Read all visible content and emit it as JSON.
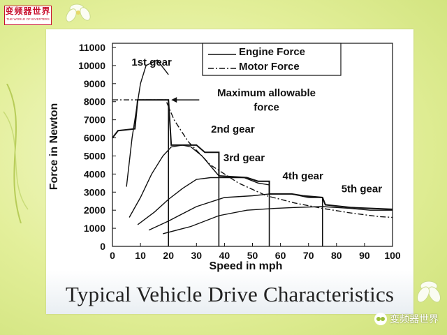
{
  "logo": {
    "name": "变频器世界",
    "subtitle": "THE WORLD OF INVERTERS"
  },
  "caption": "Typical Vehicle Drive Characteristics",
  "watermark": "变频器世界",
  "chart_data": {
    "type": "line",
    "xlabel": "Speed in mph",
    "ylabel": "Force in Newton",
    "xlim": [
      0,
      100
    ],
    "ylim": [
      0,
      11000
    ],
    "xticks": [
      0,
      10,
      20,
      30,
      40,
      50,
      60,
      70,
      80,
      90,
      100
    ],
    "yticks": [
      0,
      1000,
      2000,
      3000,
      4000,
      5000,
      6000,
      7000,
      8000,
      9000,
      10000,
      11000
    ],
    "legend": [
      {
        "name": "Engine Force",
        "style": "solid"
      },
      {
        "name": "Motor Force",
        "style": "dash-dot"
      }
    ],
    "legend_position": "top-right",
    "series": [
      {
        "name": "1st gear",
        "style": "solid",
        "points": [
          [
            5,
            3300
          ],
          [
            7,
            6000
          ],
          [
            10,
            9000
          ],
          [
            12,
            10000
          ],
          [
            16,
            10300
          ],
          [
            20,
            9500
          ]
        ]
      },
      {
        "name": "2nd gear",
        "style": "solid",
        "points": [
          [
            6,
            1600
          ],
          [
            10,
            2700
          ],
          [
            14,
            4000
          ],
          [
            18,
            5000
          ],
          [
            21,
            5500
          ],
          [
            25,
            5600
          ],
          [
            28,
            5500
          ],
          [
            32,
            5000
          ],
          [
            38,
            3900
          ]
        ]
      },
      {
        "name": "3rd gear",
        "style": "solid",
        "points": [
          [
            9,
            1200
          ],
          [
            15,
            1900
          ],
          [
            20,
            2600
          ],
          [
            25,
            3200
          ],
          [
            30,
            3700
          ],
          [
            35,
            3800
          ],
          [
            38,
            3800
          ],
          [
            47,
            3800
          ],
          [
            52,
            3500
          ],
          [
            56,
            3400
          ]
        ]
      },
      {
        "name": "4th gear",
        "style": "solid",
        "points": [
          [
            13,
            900
          ],
          [
            20,
            1400
          ],
          [
            30,
            2200
          ],
          [
            40,
            2700
          ],
          [
            50,
            2800
          ],
          [
            56,
            2900
          ],
          [
            64,
            2900
          ],
          [
            70,
            2700
          ],
          [
            75,
            2700
          ]
        ]
      },
      {
        "name": "5th gear",
        "style": "solid",
        "points": [
          [
            18,
            700
          ],
          [
            28,
            1100
          ],
          [
            38,
            1700
          ],
          [
            48,
            2000
          ],
          [
            58,
            2100
          ],
          [
            65,
            2150
          ],
          [
            75,
            2200
          ],
          [
            85,
            2100
          ],
          [
            92,
            2000
          ],
          [
            100,
            2000
          ]
        ]
      },
      {
        "name": "Motor Force",
        "style": "dash-dot",
        "points": [
          [
            0,
            8100
          ],
          [
            19,
            8100
          ],
          [
            22,
            7000
          ],
          [
            27,
            5800
          ],
          [
            35,
            4500
          ],
          [
            45,
            3500
          ],
          [
            55,
            2800
          ],
          [
            65,
            2400
          ],
          [
            75,
            2100
          ],
          [
            85,
            1850
          ],
          [
            95,
            1650
          ],
          [
            100,
            1600
          ]
        ]
      }
    ],
    "engine_envelope": {
      "points": [
        [
          0,
          6000
        ],
        [
          2,
          6400
        ],
        [
          8,
          6500
        ],
        [
          9,
          8100
        ],
        [
          20,
          8100
        ],
        [
          21,
          5600
        ],
        [
          30,
          5600
        ],
        [
          33,
          5200
        ],
        [
          38,
          5200
        ],
        [
          38,
          3900
        ],
        [
          48,
          3800
        ],
        [
          52,
          3600
        ],
        [
          56,
          3600
        ],
        [
          56,
          2900
        ],
        [
          64,
          2900
        ],
        [
          68,
          2800
        ],
        [
          75,
          2700
        ],
        [
          76,
          2300
        ],
        [
          85,
          2150
        ],
        [
          100,
          2050
        ]
      ]
    },
    "gear_shift_lines": [
      20,
      38,
      56,
      75
    ],
    "annotations": [
      {
        "text": "1st gear",
        "x": 14,
        "y": 10000
      },
      {
        "text": "2nd gear",
        "x": 43,
        "y": 6300
      },
      {
        "text": "3rd gear",
        "x": 47,
        "y": 4700
      },
      {
        "text": "4th gear",
        "x": 68,
        "y": 3700
      },
      {
        "text": "5th gear",
        "x": 89,
        "y": 3000
      },
      {
        "text": "Maximum allowable",
        "x": 55,
        "y": 8300
      },
      {
        "text": "force",
        "x": 55,
        "y": 7500
      }
    ],
    "grid": false
  }
}
